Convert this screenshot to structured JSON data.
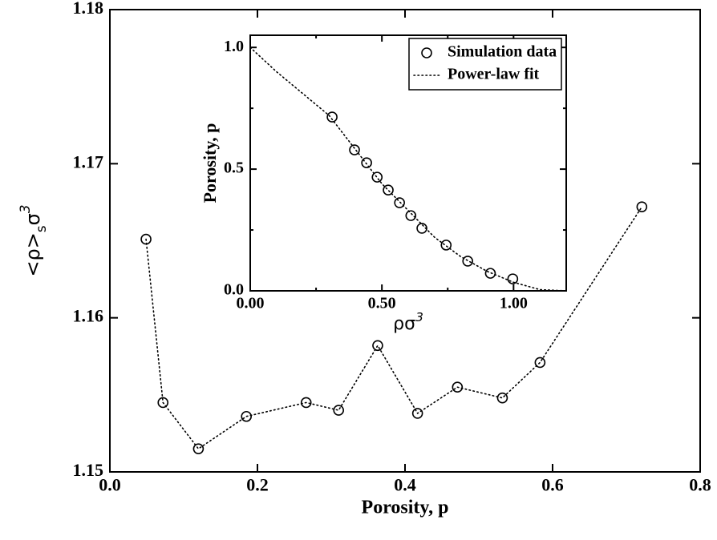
{
  "chart_data": [
    {
      "type": "line",
      "xlabel": "Porosity, p",
      "ylabel": [
        "<ρ>",
        "s",
        "σ",
        "3"
      ],
      "xlim": [
        0,
        0.8
      ],
      "ylim": [
        1.15,
        1.18
      ],
      "xticks": [
        {
          "value": 0,
          "label": "0.0"
        },
        0.2,
        0.4,
        0.6,
        0.8
      ],
      "yticks": [
        1.15,
        1.16,
        1.17,
        1.18
      ],
      "series": [
        {
          "color": "#000000",
          "marker": "circle",
          "line": "dotted",
          "x": [
            0.049,
            0.072,
            0.12,
            0.185,
            0.266,
            0.31,
            0.363,
            0.417,
            0.471,
            0.532,
            0.583,
            0.721
          ],
          "values": [
            1.1651,
            1.1545,
            1.1515,
            1.1536,
            1.1545,
            1.154,
            1.1582,
            1.1538,
            1.1555,
            1.1548,
            1.1571,
            1.1672
          ]
        }
      ]
    },
    {
      "type": "line",
      "xlabel": [
        "ρσ",
        "3"
      ],
      "ylabel": "Porosity, p",
      "xlim": [
        0,
        1.2
      ],
      "ylim": [
        0,
        1.05
      ],
      "xticks": [
        {
          "value": 0,
          "label": "0.00"
        },
        {
          "value": 0.5,
          "label": "0.50"
        },
        {
          "value": 1,
          "label": "1.00"
        }
      ],
      "yticks": [
        {
          "value": 0,
          "label": "0.0"
        },
        0.5,
        {
          "value": 1,
          "label": "1.0"
        }
      ],
      "xminorticks": [
        0.25,
        0.75
      ],
      "yminorticks": [
        0.25,
        0.75
      ],
      "legend": "upper right",
      "series": [
        {
          "name": "Simulation data",
          "color": "#000000",
          "marker": "circle",
          "line": "none",
          "x": [
            0.311,
            0.396,
            0.442,
            0.482,
            0.524,
            0.567,
            0.61,
            0.652,
            0.744,
            0.826,
            0.912,
            0.997
          ],
          "values": [
            0.714,
            0.579,
            0.526,
            0.467,
            0.414,
            0.362,
            0.309,
            0.257,
            0.188,
            0.122,
            0.072,
            0.049
          ]
        },
        {
          "name": "Power-law fit",
          "color": "#000000",
          "marker": "none",
          "line": "dotted",
          "x": [
            0,
            0.1,
            0.2,
            0.3,
            0.4,
            0.5,
            0.6,
            0.7,
            0.8,
            0.9,
            1.0,
            1.1,
            1.2
          ],
          "values": [
            1.0,
            0.9,
            0.81,
            0.72,
            0.58,
            0.44,
            0.33,
            0.22,
            0.14,
            0.08,
            0.035,
            0.005,
            0
          ]
        }
      ]
    }
  ]
}
